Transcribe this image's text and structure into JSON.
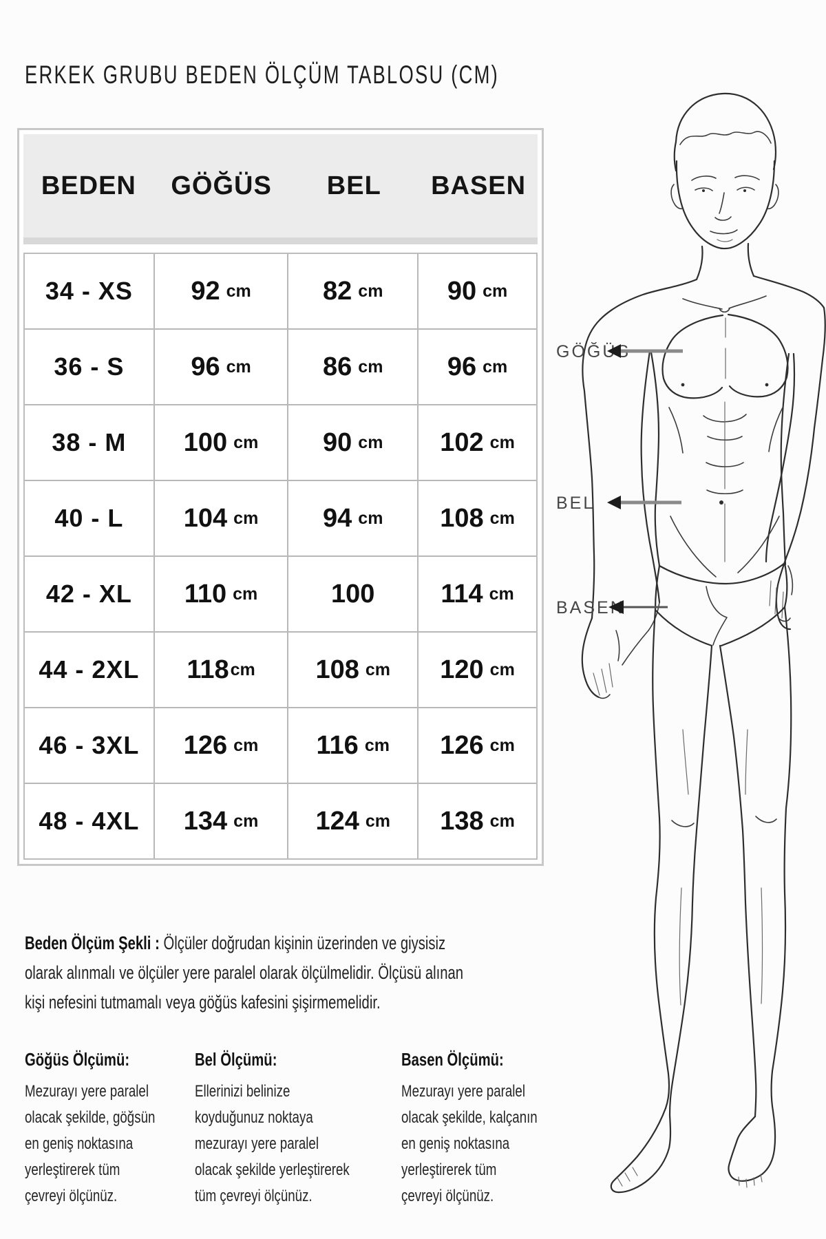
{
  "title": "ERKEK GRUBU BEDEN ÖLÇÜM TABLOSU (CM)",
  "size_table": {
    "headers": [
      "BEDEN",
      "GÖĞÜS",
      "BEL",
      "BASEN"
    ],
    "rows": [
      {
        "size": "34 - XS",
        "gogus": "92",
        "gogus_unit": "cm",
        "bel": "82",
        "bel_unit": "cm",
        "basen": "90",
        "basen_unit": "cm"
      },
      {
        "size": "36 - S",
        "gogus": "96",
        "gogus_unit": "cm",
        "bel": "86",
        "bel_unit": "cm",
        "basen": "96",
        "basen_unit": "cm"
      },
      {
        "size": "38 - M",
        "gogus": "100",
        "gogus_unit": "cm",
        "bel": "90",
        "bel_unit": "cm",
        "basen": "102",
        "basen_unit": "cm"
      },
      {
        "size": "40 - L",
        "gogus": "104",
        "gogus_unit": "cm",
        "bel": "94",
        "bel_unit": "cm",
        "basen": "108",
        "basen_unit": "cm"
      },
      {
        "size": "42 - XL",
        "gogus": "110",
        "gogus_unit": "cm",
        "bel": "100",
        "bel_unit": "",
        "basen": "114",
        "basen_unit": "cm"
      },
      {
        "size": "44 - 2XL",
        "gogus": "118",
        "gogus_unit": "cm",
        "gogus_tight": true,
        "bel": "108",
        "bel_unit": "cm",
        "basen": "120",
        "basen_unit": "cm"
      },
      {
        "size": "46 - 3XL",
        "gogus": "126",
        "gogus_unit": "cm",
        "bel": "116",
        "bel_unit": "cm",
        "basen": "126",
        "basen_unit": "cm"
      },
      {
        "size": "48 - 4XL",
        "gogus": "134",
        "gogus_unit": "cm",
        "bel": "124",
        "bel_unit": "cm",
        "basen": "138",
        "basen_unit": "cm"
      }
    ]
  },
  "figure": {
    "labels": [
      {
        "text": "GÖĞÜS"
      },
      {
        "text": "BEL"
      },
      {
        "text": "BASEN"
      }
    ]
  },
  "note": {
    "lead": "Beden Ölçüm Şekli :",
    "body": "Ölçüler doğrudan kişinin üzerinden ve giysisiz\nolarak alınmalı ve ölçüler yere paralel olarak ölçülmelidir. Ölçüsü alınan\nkişi nefesini tutmamalı veya göğüs kafesini şişirmemelidir."
  },
  "sections": [
    {
      "heading": "Göğüs Ölçümü:",
      "body": "Mezurayı yere paralel\nolacak şekilde, göğsün\nen geniş noktasına\nyerleştirerek tüm\nçevreyi ölçünüz."
    },
    {
      "heading": "Bel Ölçümü:",
      "body": "Ellerinizi belinize\nkoyduğunuz noktaya\nmezurayı yere paralel\nolacak şekilde yerleştirerek\ntüm çevreyi ölçünüz."
    },
    {
      "heading": "Basen Ölçümü:",
      "body": "Mezurayı yere paralel\nolacak şekilde, kalçanın\nen geniş noktasına\nyerleştirerek tüm\nçevreyi ölçünüz."
    }
  ],
  "colors": {
    "header_bg": "#ececec",
    "grid_line": "#b8b8b8",
    "outer_border": "#c8c8c8",
    "text": "#161616",
    "label_text": "#464646",
    "arrow_shaft": "#8a8a8a",
    "arrow_head": "#1c1c1c",
    "sketch_line": "#2e2e2e"
  }
}
